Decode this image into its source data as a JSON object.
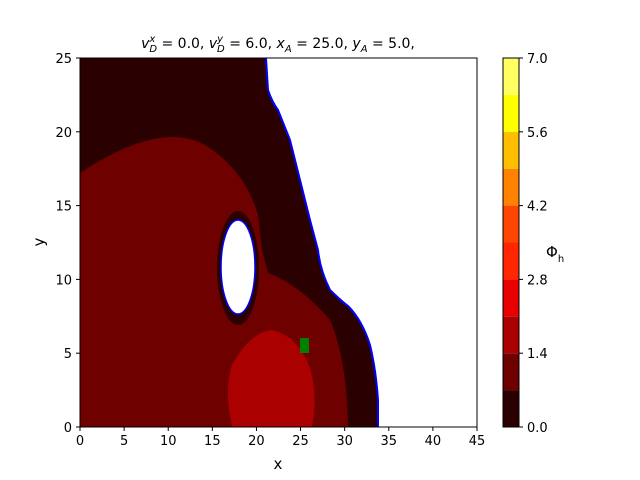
{
  "chart_data": {
    "type": "contour",
    "title_parts": [
      {
        "base": "v",
        "sub": "D",
        "sup": "x",
        "rest": " = 0.0, "
      },
      {
        "base": "v",
        "sub": "D",
        "sup": "y",
        "rest": " = 6.0, "
      },
      {
        "base": "x",
        "sub": "A",
        "rest": " = 25.0, "
      },
      {
        "base": "y",
        "sub": "A",
        "rest": " = 5.0,"
      }
    ],
    "x_label": "x",
    "y_label": "y",
    "colorbar_label": {
      "base": "Φ",
      "sub": "h"
    },
    "xlim": [
      0,
      45
    ],
    "xticks": [
      0,
      5,
      10,
      15,
      20,
      25,
      30,
      35,
      40,
      45
    ],
    "ylim": [
      0,
      25
    ],
    "yticks": [
      0,
      5,
      10,
      15,
      20,
      25
    ],
    "levels": [
      0,
      0.7,
      1.4,
      2.1,
      2.8,
      3.5,
      4.2,
      4.9,
      5.6,
      6.3,
      7.0
    ],
    "colors": [
      "#2b0000",
      "#6e0000",
      "#ab0000",
      "#e80000",
      "#ff2600",
      "#ff4500",
      "#ff8200",
      "#ffbf00",
      "#ffff00",
      "#ffff60",
      "#ffffd0"
    ],
    "clim": [
      0,
      7.0
    ],
    "cticks": [
      {
        "value": 0,
        "label": "0.0"
      },
      {
        "value": 1.4,
        "label": "1.4"
      },
      {
        "value": 2.8,
        "label": "2.8"
      },
      {
        "value": 4.2,
        "label": "4.2"
      },
      {
        "value": 5.6,
        "label": "5.6"
      },
      {
        "value": 7.0,
        "label": "7.0"
      }
    ]
  }
}
